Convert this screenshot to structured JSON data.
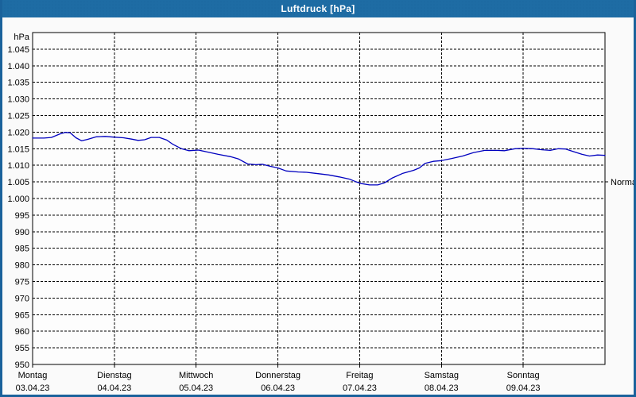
{
  "window": {
    "title": "Luftdruck [hPa]",
    "titlebar_color": "#1e6ca4",
    "frame_color": "#1a629b"
  },
  "chart_data": {
    "type": "line",
    "title": "Luftdruck [hPa]",
    "unit_label": "hPa",
    "ylim": [
      950,
      1050
    ],
    "ytick_step": 5,
    "grid": "dashed",
    "legend": "none",
    "line_color": "#0000bf",
    "grid_color": "#000000",
    "yticks": [
      {
        "value": 1045,
        "label": "1.045"
      },
      {
        "value": 1040,
        "label": "1.040"
      },
      {
        "value": 1035,
        "label": "1.035"
      },
      {
        "value": 1030,
        "label": "1.030"
      },
      {
        "value": 1025,
        "label": "1.025"
      },
      {
        "value": 1020,
        "label": "1.020"
      },
      {
        "value": 1015,
        "label": "1.015"
      },
      {
        "value": 1010,
        "label": "1.010"
      },
      {
        "value": 1005,
        "label": "1.005"
      },
      {
        "value": 1000,
        "label": "1.000"
      },
      {
        "value": 995,
        "label": "995"
      },
      {
        "value": 990,
        "label": "990"
      },
      {
        "value": 985,
        "label": "985"
      },
      {
        "value": 980,
        "label": "980"
      },
      {
        "value": 975,
        "label": "975"
      },
      {
        "value": 970,
        "label": "970"
      },
      {
        "value": 965,
        "label": "965"
      },
      {
        "value": 960,
        "label": "960"
      },
      {
        "value": 955,
        "label": "955"
      },
      {
        "value": 950,
        "label": "950"
      }
    ],
    "days": [
      {
        "name": "Montag",
        "date": "03.04.23"
      },
      {
        "name": "Dienstag",
        "date": "04.04.23"
      },
      {
        "name": "Mittwoch",
        "date": "05.04.23"
      },
      {
        "name": "Donnerstag",
        "date": "06.04.23"
      },
      {
        "name": "Freitag",
        "date": "07.04.23"
      },
      {
        "name": "Samstag",
        "date": "08.04.23"
      },
      {
        "name": "Sonntag",
        "date": "09.04.23"
      }
    ],
    "normal": {
      "label": "Normal",
      "value": 1005
    },
    "series": [
      {
        "name": "Luftdruck",
        "unit": "hPa",
        "x_days": [
          0.0,
          0.14,
          0.23,
          0.33,
          0.4,
          0.46,
          0.53,
          0.6,
          0.67,
          0.78,
          0.89,
          0.99,
          1.11,
          1.21,
          1.29,
          1.37,
          1.45,
          1.55,
          1.64,
          1.71,
          1.82,
          1.91,
          2.03,
          2.14,
          2.27,
          2.42,
          2.52,
          2.63,
          2.73,
          2.81,
          2.91,
          3.0,
          3.1,
          3.25,
          3.35,
          3.49,
          3.62,
          3.75,
          3.88,
          3.95,
          4.02,
          4.12,
          4.22,
          4.3,
          4.4,
          4.53,
          4.66,
          4.73,
          4.8,
          4.9,
          5.0,
          5.12,
          5.26,
          5.39,
          5.53,
          5.68,
          5.77,
          5.9,
          6.0,
          6.12,
          6.23,
          6.33,
          6.43,
          6.52,
          6.62,
          6.72,
          6.81,
          6.91,
          7.0
        ],
        "values": [
          1018.2,
          1018.2,
          1018.4,
          1019.4,
          1019.9,
          1019.8,
          1018.3,
          1017.4,
          1017.8,
          1018.6,
          1018.7,
          1018.5,
          1018.3,
          1017.9,
          1017.5,
          1017.7,
          1018.4,
          1018.4,
          1017.6,
          1016.4,
          1015.0,
          1014.4,
          1014.6,
          1014.0,
          1013.3,
          1012.6,
          1011.9,
          1010.4,
          1010.2,
          1010.3,
          1009.7,
          1009.2,
          1008.3,
          1008.0,
          1007.9,
          1007.5,
          1007.1,
          1006.5,
          1005.8,
          1005.1,
          1004.5,
          1004.1,
          1004.1,
          1004.7,
          1006.2,
          1007.6,
          1008.5,
          1009.2,
          1010.6,
          1011.2,
          1011.4,
          1012.0,
          1012.8,
          1013.8,
          1014.5,
          1014.5,
          1014.4,
          1015.0,
          1015.1,
          1015.0,
          1014.7,
          1014.5,
          1015.0,
          1014.9,
          1014.1,
          1013.3,
          1012.8,
          1013.1,
          1013.0
        ]
      }
    ]
  }
}
